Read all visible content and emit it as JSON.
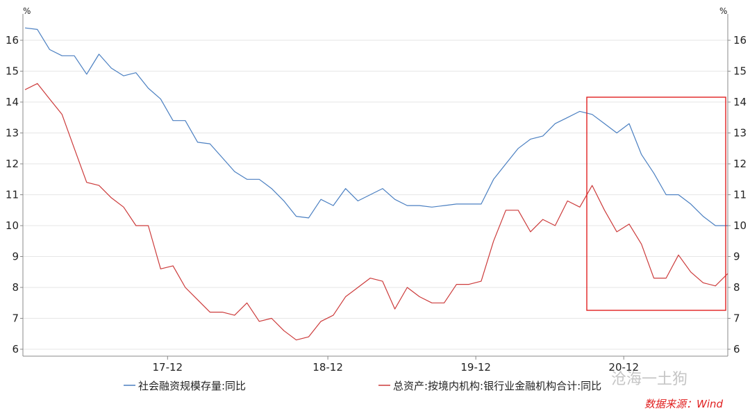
{
  "chart_data": {
    "type": "line",
    "x_ticks": [
      "17-12",
      "18-12",
      "19-12",
      "20-12"
    ],
    "y_unit_left": "%",
    "y_unit_right": "%",
    "ylim": [
      6,
      16.5
    ],
    "y_ticks": [
      6,
      7,
      8,
      9,
      10,
      11,
      12,
      13,
      14,
      15,
      16
    ],
    "grid": true,
    "legend_position": "bottom",
    "series": [
      {
        "name": "社会融资规模存量:同比",
        "color": "#4a7fc1",
        "values": [
          16.4,
          16.35,
          15.7,
          15.5,
          15.5,
          14.9,
          15.55,
          15.1,
          14.85,
          14.95,
          14.45,
          14.1,
          13.4,
          13.4,
          12.7,
          12.65,
          12.2,
          11.75,
          11.5,
          11.5,
          11.2,
          10.8,
          10.3,
          10.25,
          10.85,
          10.65,
          11.2,
          10.8,
          11.0,
          11.2,
          10.85,
          10.65,
          10.65,
          10.6,
          10.65,
          10.7,
          10.7,
          10.7,
          11.5,
          12.0,
          12.5,
          12.8,
          12.9,
          13.3,
          13.5,
          13.7,
          13.6,
          13.3,
          13.0,
          13.3,
          12.3,
          11.7,
          11.0,
          11.0,
          10.7,
          10.3,
          10.0,
          10.0
        ]
      },
      {
        "name": "总资产:按境内机构:银行业金融机构合计:同比",
        "color": "#cc3a3a",
        "values": [
          14.4,
          14.6,
          14.1,
          13.6,
          12.5,
          11.4,
          11.3,
          10.9,
          10.6,
          10.0,
          10.0,
          8.6,
          8.7,
          8.0,
          7.6,
          7.2,
          7.2,
          7.1,
          7.5,
          6.9,
          7.0,
          6.6,
          6.3,
          6.4,
          6.9,
          7.1,
          7.7,
          8.0,
          8.3,
          8.2,
          7.3,
          8.0,
          7.7,
          7.5,
          7.5,
          8.1,
          8.1,
          8.2,
          9.5,
          10.5,
          10.5,
          9.8,
          10.2,
          10.0,
          10.8,
          10.6,
          11.3,
          10.5,
          9.8,
          10.05,
          9.4,
          8.3,
          8.3,
          9.05,
          8.5,
          8.15,
          8.05,
          8.45
        ]
      }
    ]
  },
  "source": "数据来源：Wind",
  "watermark": "沧海一土狗",
  "highlight_color": "#e02020"
}
